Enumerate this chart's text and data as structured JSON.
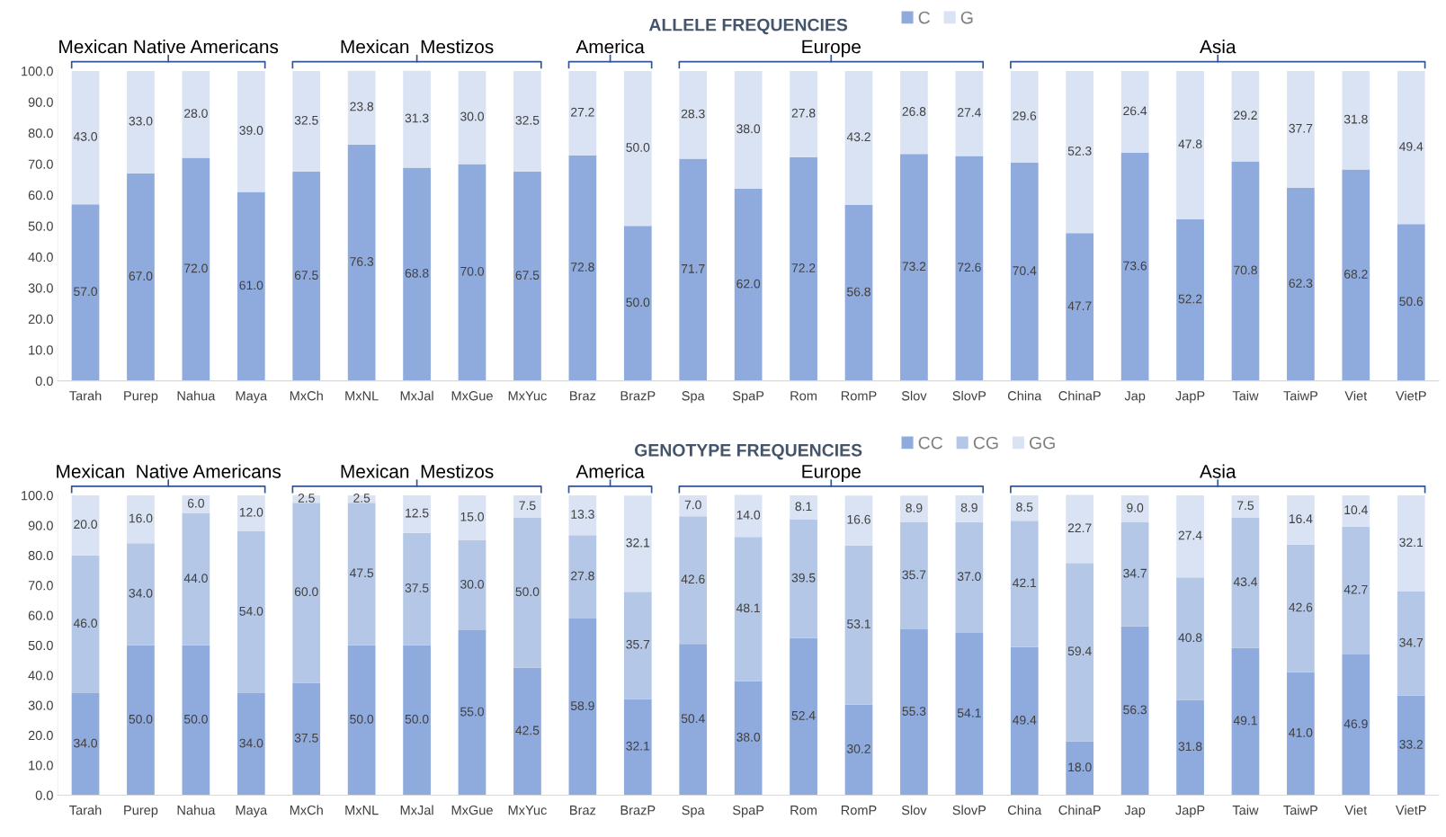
{
  "chart_data": [
    {
      "type": "bar",
      "stacked": true,
      "title": "ALLELE FREQUENCIES",
      "categories": [
        "Tarah",
        "Purep",
        "Nahua",
        "Maya",
        "MxCh",
        "MxNL",
        "MxJal",
        "MxGue",
        "MxYuc",
        "Braz",
        "BrazP",
        "Spa",
        "SpaP",
        "Rom",
        "RomP",
        "Slov",
        "SlovP",
        "China",
        "ChinaP",
        "Jap",
        "JapP",
        "Taiw",
        "TaiwP",
        "Viet",
        "VietP"
      ],
      "series": [
        {
          "name": "C",
          "color": "#8faadc",
          "values": [
            57.0,
            67.0,
            72.0,
            61.0,
            67.5,
            76.3,
            68.8,
            70.0,
            67.5,
            72.8,
            50.0,
            71.7,
            62.0,
            72.2,
            56.8,
            73.2,
            72.6,
            70.4,
            47.7,
            73.6,
            52.2,
            70.8,
            62.3,
            68.2,
            50.6
          ],
          "value_labels": [
            "57.0",
            "67.0",
            "72.0",
            "61.0",
            "67.5",
            "76.3",
            "68.8",
            "70.0",
            "67.5",
            "72.8",
            "50.0",
            "71.7",
            "62.0",
            "72.2",
            "56.8",
            "73.2",
            "72.6",
            "70.4",
            "47.7",
            "73.6",
            "52.2",
            "70.8",
            "62.3",
            "68.2",
            "50.6"
          ]
        },
        {
          "name": "G",
          "color": "#dae3f3",
          "values": [
            43.0,
            33.0,
            28.0,
            39.0,
            32.5,
            23.8,
            31.3,
            30.0,
            32.5,
            27.2,
            50.0,
            28.3,
            38.0,
            27.8,
            43.2,
            26.8,
            27.4,
            29.6,
            52.3,
            26.4,
            47.8,
            29.2,
            37.7,
            31.8,
            49.4
          ],
          "value_labels": [
            "43.0",
            "33.0",
            "28.0",
            "39.0",
            "32.5",
            "23.8",
            "31.3",
            "30.0",
            "32.5",
            "27.2",
            "50.0",
            "28.3",
            "38.0",
            "27.8",
            "43.2",
            "26.8",
            "27.4",
            "29.6",
            "52.3",
            "26.4",
            "47.8",
            "29.2",
            "37.7",
            "31.8",
            "49.4"
          ]
        }
      ],
      "ylim": [
        0,
        100.5
      ],
      "yticks": [
        {
          "value": 0,
          "label": "0.0"
        },
        {
          "value": 10,
          "label": "10.0"
        },
        {
          "value": 20,
          "label": "20.0"
        },
        {
          "value": 30,
          "label": "30.0"
        },
        {
          "value": 40,
          "label": "40.0"
        },
        {
          "value": 50,
          "label": "50.0"
        },
        {
          "value": 60,
          "label": "60.0"
        },
        {
          "value": 70,
          "label": "70.0"
        },
        {
          "value": 80,
          "label": "80.0"
        },
        {
          "value": 90,
          "label": "90.0"
        },
        {
          "value": 100,
          "label": "100.0"
        }
      ],
      "legend": "top",
      "grid": false,
      "annotations": [
        "Mexican Native Americans",
        "Mexican  Mestizos",
        "America",
        "Europe",
        "Asia"
      ]
    },
    {
      "type": "bar",
      "stacked": true,
      "title": "GENOTYPE FREQUENCIES",
      "categories": [
        "Tarah",
        "Purep",
        "Nahua",
        "Maya",
        "MxCh",
        "MxNL",
        "MxJal",
        "MxGue",
        "MxYuc",
        "Braz",
        "BrazP",
        "Spa",
        "SpaP",
        "Rom",
        "RomP",
        "Slov",
        "SlovP",
        "China",
        "ChinaP",
        "Jap",
        "JapP",
        "Taiw",
        "TaiwP",
        "Viet",
        "VietP"
      ],
      "series": [
        {
          "name": "CC",
          "color": "#8faadc",
          "values": [
            34.0,
            50.0,
            50.0,
            34.0,
            37.5,
            50.0,
            50.0,
            55.0,
            42.5,
            58.9,
            32.1,
            50.4,
            38.0,
            52.4,
            30.2,
            55.3,
            54.1,
            49.4,
            18.0,
            56.3,
            31.8,
            49.1,
            41.0,
            46.9,
            33.2
          ],
          "value_labels": [
            "34.0",
            "50.0",
            "50.0",
            "34.0",
            "37.5",
            "50.0",
            "50.0",
            "55.0",
            "42.5",
            "58.9",
            "32.1",
            "50.4",
            "38.0",
            "52.4",
            "30.2",
            "55.3",
            "54.1",
            "49.4",
            "18.0",
            "56.3",
            "31.8",
            "49.1",
            "41.0",
            "46.9",
            "33.2"
          ]
        },
        {
          "name": "CG",
          "color": "#b4c7e7",
          "values": [
            46.0,
            34.0,
            44.0,
            54.0,
            60.0,
            47.5,
            37.5,
            30.0,
            50.0,
            27.8,
            35.7,
            42.6,
            48.1,
            39.5,
            53.1,
            35.7,
            37.0,
            42.1,
            59.4,
            34.7,
            40.8,
            43.4,
            42.6,
            42.7,
            34.7
          ],
          "value_labels": [
            "46.0",
            "34.0",
            "44.0",
            "54.0",
            "60.0",
            "47.5",
            "37.5",
            "30.0",
            "50.0",
            "27.8",
            "35.7",
            "42.6",
            "48.1",
            "39.5",
            "53.1",
            "35.7",
            "37.0",
            "42.1",
            "59.4",
            "34.7",
            "40.8",
            "43.4",
            "42.6",
            "42.7",
            "34.7"
          ]
        },
        {
          "name": "GG",
          "color": "#dae3f3",
          "values": [
            20.0,
            16.0,
            6.0,
            12.0,
            2.5,
            2.5,
            12.5,
            15.0,
            7.5,
            13.3,
            32.1,
            7.0,
            14.0,
            8.1,
            16.6,
            8.9,
            8.9,
            8.5,
            22.7,
            9.0,
            27.4,
            7.5,
            16.4,
            10.4,
            32.1
          ],
          "value_labels": [
            "20.0",
            "16.0",
            "6.0",
            "12.0",
            "2.5",
            "2.5",
            "12.5",
            "15.0",
            "7.5",
            "13.3",
            "32.1",
            "7.0",
            "14.0",
            "8.1",
            "16.6",
            "8.9",
            "8.9",
            "8.5",
            "22.7",
            "9.0",
            "27.4",
            "7.5",
            "16.4",
            "10.4",
            "32.1"
          ]
        }
      ],
      "ylim": [
        0,
        100.5
      ],
      "yticks": [
        {
          "value": 0,
          "label": "0.0"
        },
        {
          "value": 10,
          "label": "10.0"
        },
        {
          "value": 20,
          "label": "20.0"
        },
        {
          "value": 30,
          "label": "30.0"
        },
        {
          "value": 40,
          "label": "40.0"
        },
        {
          "value": 50,
          "label": "50.0"
        },
        {
          "value": 60,
          "label": "60.0"
        },
        {
          "value": 70,
          "label": "70.0"
        },
        {
          "value": 80,
          "label": "80.0"
        },
        {
          "value": 90,
          "label": "90.0"
        },
        {
          "value": 100,
          "label": "100.0"
        }
      ],
      "legend": "top",
      "grid": false,
      "annotations": [
        "Mexican  Native Americans",
        "Mexican  Mestizos",
        "America",
        "Europe",
        "Asia"
      ]
    }
  ]
}
